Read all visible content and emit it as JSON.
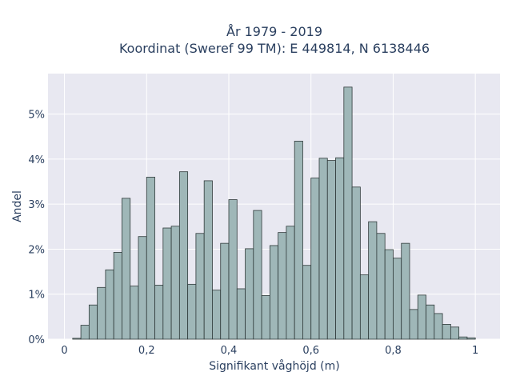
{
  "chart_data": {
    "type": "bar",
    "title_line1": "År 1979 - 2019",
    "title_line2": "Koordinat (Sweref 99 TM): E 449814, N 6138446",
    "xlabel": "Signifikant våghöjd (m)",
    "ylabel": "Andel",
    "xlim": [
      -0.04,
      1.06
    ],
    "ylim": [
      0,
      5.9
    ],
    "x_ticks": [
      0,
      0.2,
      0.4,
      0.6,
      0.8,
      1
    ],
    "x_tick_labels": [
      "0",
      "0,2",
      "0,4",
      "0,6",
      "0,8",
      "1"
    ],
    "y_ticks": [
      0,
      1,
      2,
      3,
      4,
      5
    ],
    "y_tick_labels": [
      "0%",
      "1%",
      "2%",
      "3%",
      "4%",
      "5%"
    ],
    "bin_width": 0.02,
    "bins_start": [
      0.02,
      0.04,
      0.06,
      0.08,
      0.1,
      0.12,
      0.14,
      0.16,
      0.18,
      0.2,
      0.22,
      0.24,
      0.26,
      0.28,
      0.3,
      0.32,
      0.34,
      0.36,
      0.38,
      0.4,
      0.42,
      0.44,
      0.46,
      0.48,
      0.5,
      0.52,
      0.54,
      0.56,
      0.58,
      0.6,
      0.62,
      0.64,
      0.66,
      0.68,
      0.7,
      0.72,
      0.74,
      0.76,
      0.78,
      0.8,
      0.82,
      0.84,
      0.86,
      0.88,
      0.9,
      0.92,
      0.94,
      0.96,
      0.98
    ],
    "values": [
      0.02,
      0.31,
      0.76,
      1.15,
      1.54,
      1.93,
      3.13,
      1.18,
      2.28,
      3.6,
      1.2,
      2.47,
      2.51,
      3.72,
      1.22,
      2.35,
      3.52,
      1.09,
      2.13,
      3.1,
      1.12,
      2.01,
      2.86,
      0.97,
      2.08,
      2.37,
      2.51,
      4.4,
      1.64,
      3.58,
      4.02,
      3.97,
      4.03,
      5.6,
      3.38,
      1.43,
      2.61,
      2.35,
      1.99,
      1.8,
      2.13,
      0.66,
      0.98,
      0.76,
      0.57,
      0.33,
      0.27,
      0.05,
      0.03
    ],
    "grid": true,
    "colors": {
      "bar_fill": "#9fb7b8",
      "bar_stroke": "#2f3a3a",
      "plot_bg": "#e8e8f1",
      "grid": "#ffffff",
      "text": "#2a3f5f"
    }
  }
}
